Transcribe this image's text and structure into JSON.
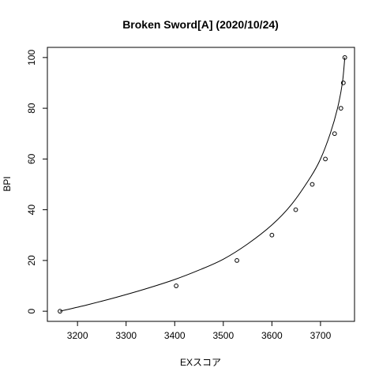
{
  "chart_data": {
    "type": "scatter",
    "title": "Broken Sword[A] (2020/10/24)",
    "xlabel": "EXスコア",
    "ylabel": "BPI",
    "xlim": [
      3138,
      3770
    ],
    "ylim": [
      -4,
      104
    ],
    "xticks": [
      3200,
      3300,
      3400,
      3500,
      3600,
      3700
    ],
    "yticks": [
      0,
      20,
      40,
      60,
      80,
      100
    ],
    "grid": false,
    "legend": "none",
    "colors": {
      "line": "#000000",
      "points": "#000000",
      "background": "#ffffff"
    },
    "points": {
      "x": [
        3164,
        3403,
        3528,
        3600,
        3649,
        3683,
        3710,
        3729,
        3742,
        3747,
        3750
      ],
      "y": [
        0,
        10,
        20,
        30,
        40,
        50,
        60,
        70,
        80,
        90,
        100
      ]
    },
    "fit_curve": {
      "x": [
        3164,
        3220,
        3280,
        3340,
        3400,
        3450,
        3500,
        3550,
        3600,
        3640,
        3680,
        3700,
        3720,
        3735,
        3745,
        3750
      ],
      "y": [
        0,
        2.5,
        5.5,
        8.8,
        12.5,
        16.2,
        20.5,
        26.5,
        34,
        42,
        53,
        60,
        70,
        80,
        90,
        100
      ]
    }
  }
}
